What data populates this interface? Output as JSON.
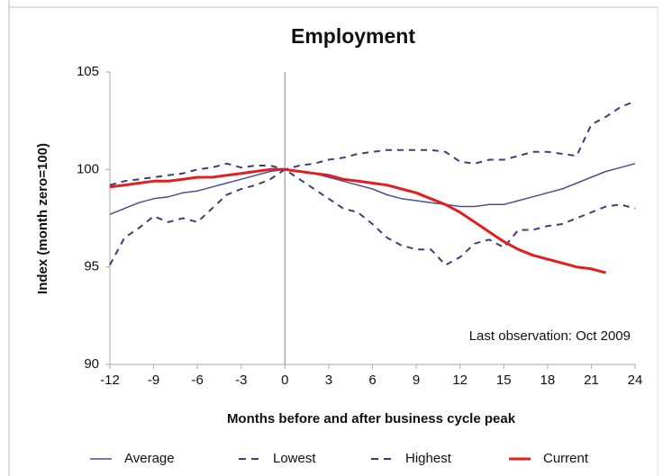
{
  "chart_data": {
    "type": "line",
    "title": "Employment",
    "y_label": "Index (month zero=100)",
    "x_label": "Months before and after business cycle peak",
    "annotation": "Last observation: Oct 2009",
    "x": [
      -12,
      -11,
      -10,
      -9,
      -8,
      -7,
      -6,
      -5,
      -4,
      -3,
      -2,
      -1,
      0,
      1,
      2,
      3,
      4,
      5,
      6,
      7,
      8,
      9,
      10,
      11,
      12,
      13,
      14,
      15,
      16,
      17,
      18,
      19,
      20,
      21,
      22,
      23,
      24
    ],
    "series": [
      {
        "name": "Average",
        "color": "#4a4f8f",
        "style": "solid",
        "values": [
          97.7,
          98.0,
          98.3,
          98.5,
          98.6,
          98.8,
          98.9,
          99.1,
          99.3,
          99.5,
          99.7,
          99.9,
          100,
          99.9,
          99.8,
          99.6,
          99.4,
          99.2,
          99.0,
          98.7,
          98.5,
          98.4,
          98.3,
          98.2,
          98.1,
          98.1,
          98.2,
          98.2,
          98.4,
          98.6,
          98.8,
          99.0,
          99.3,
          99.6,
          99.9,
          100.1,
          100.3
        ]
      },
      {
        "name": "Lowest",
        "color": "#3a3f7a",
        "style": "dashed",
        "values": [
          95.1,
          96.5,
          97.0,
          97.6,
          97.3,
          97.5,
          97.3,
          98.0,
          98.7,
          99.0,
          99.2,
          99.5,
          100,
          99.5,
          99.0,
          98.5,
          98.0,
          97.8,
          97.2,
          96.5,
          96.1,
          95.9,
          95.9,
          95.1,
          95.5,
          96.2,
          96.4,
          96.0,
          96.9,
          96.9,
          97.1,
          97.2,
          97.5,
          97.8,
          98.1,
          98.2,
          98.0
        ]
      },
      {
        "name": "Highest",
        "color": "#3a3f7a",
        "style": "dashed",
        "values": [
          99.2,
          99.4,
          99.5,
          99.6,
          99.7,
          99.8,
          100.0,
          100.1,
          100.3,
          100.1,
          100.2,
          100.2,
          100,
          100.2,
          100.3,
          100.5,
          100.6,
          100.8,
          100.9,
          101.0,
          101.0,
          101.0,
          101.0,
          100.9,
          100.4,
          100.3,
          100.5,
          100.5,
          100.7,
          100.9,
          100.9,
          100.8,
          100.7,
          102.3,
          102.7,
          103.2,
          103.5
        ]
      },
      {
        "name": "Current",
        "color": "#e02020",
        "style": "bold",
        "values": [
          99.1,
          99.2,
          99.3,
          99.4,
          99.4,
          99.5,
          99.6,
          99.6,
          99.7,
          99.8,
          99.9,
          100.0,
          100,
          99.9,
          99.8,
          99.7,
          99.5,
          99.4,
          99.3,
          99.2,
          99.0,
          98.8,
          98.5,
          98.2,
          97.8,
          97.3,
          96.8,
          96.3,
          95.9,
          95.6,
          95.4,
          95.2,
          95.0,
          94.9,
          94.7,
          null,
          null
        ]
      }
    ],
    "xlim": [
      -12,
      24
    ],
    "xticks": [
      -12,
      -9,
      -6,
      -3,
      0,
      3,
      6,
      9,
      12,
      15,
      18,
      21,
      24
    ],
    "ylim": [
      90,
      105
    ],
    "yticks": [
      90,
      95,
      100,
      105
    ],
    "reference_x": 0,
    "grid": false,
    "legend": "bottom"
  }
}
